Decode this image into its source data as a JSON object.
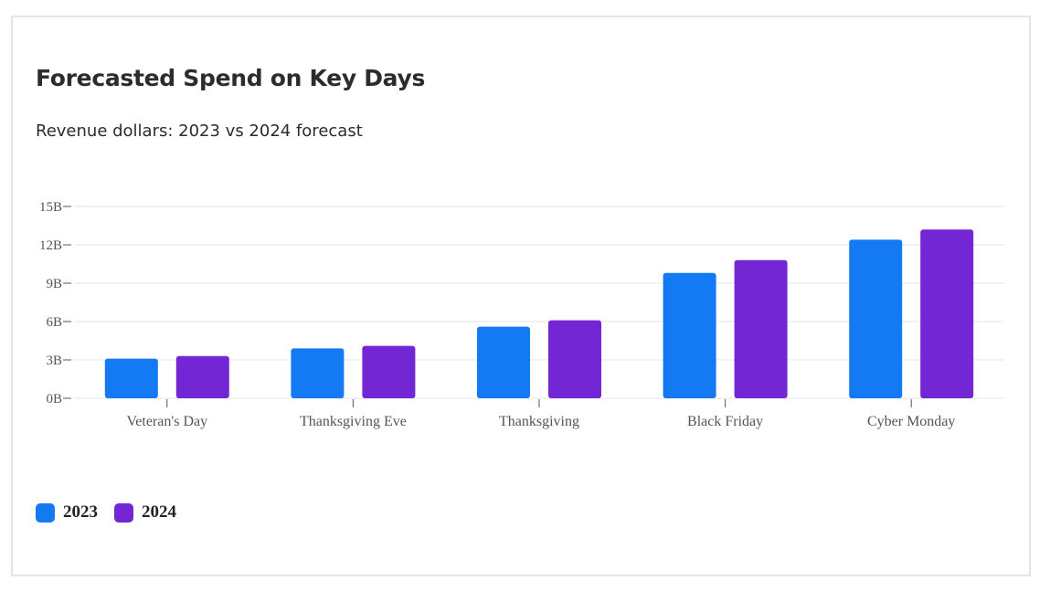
{
  "card": {
    "title": "Forecasted Spend on Key Days",
    "subtitle": "Revenue dollars: 2023 vs 2024 forecast"
  },
  "colors": {
    "series_2023": "#147af3",
    "series_2024": "#7326d3",
    "grid": "#e6e6e6",
    "axis_text": "#555555"
  },
  "chart_data": {
    "type": "bar",
    "title": "Forecasted Spend on Key Days",
    "subtitle": "Revenue dollars: 2023 vs 2024 forecast",
    "categories": [
      "Veteran's Day",
      "Thanksgiving Eve",
      "Thanksgiving",
      "Black Friday",
      "Cyber Monday"
    ],
    "series": [
      {
        "name": "2023",
        "values": [
          3.1,
          3.9,
          5.6,
          9.8,
          12.4
        ]
      },
      {
        "name": "2024",
        "values": [
          3.3,
          4.1,
          6.1,
          10.8,
          13.2
        ]
      }
    ],
    "yticks": [
      "0B",
      "3B",
      "6B",
      "9B",
      "12B",
      "15B"
    ],
    "ylim": [
      0,
      15
    ],
    "value_units": "billions of dollars",
    "grid": true,
    "legend_position": "bottom-left"
  }
}
